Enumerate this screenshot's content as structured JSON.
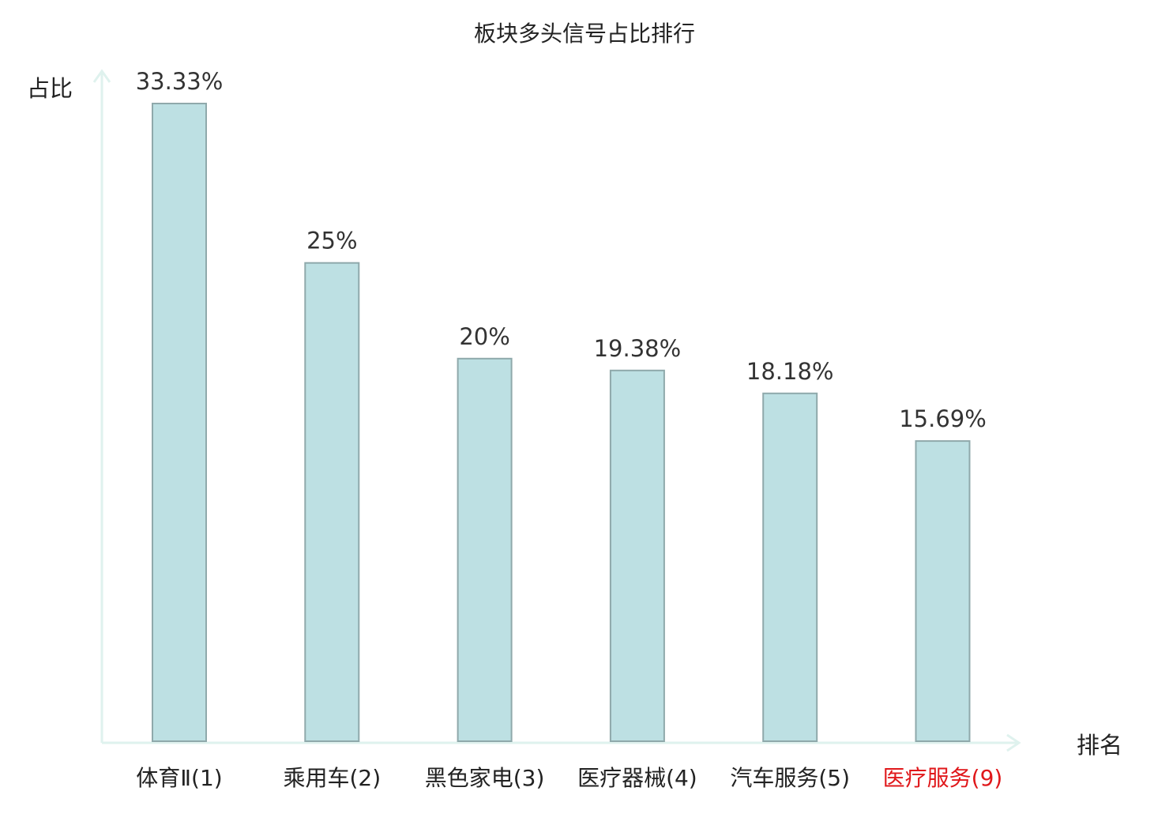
{
  "chart_data": {
    "type": "bar",
    "title": "板块多头信号占比排行",
    "xlabel": "排名",
    "ylabel": "占比",
    "categories": [
      "体育Ⅱ(1)",
      "乘用车(2)",
      "黑色家电(3)",
      "医疗器械(4)",
      "汽车服务(5)",
      "医疗服务(9)"
    ],
    "values": [
      33.33,
      25,
      20,
      19.38,
      18.18,
      15.69
    ],
    "value_labels": [
      "33.33%",
      "25%",
      "20%",
      "19.38%",
      "18.18%",
      "15.69%"
    ],
    "highlight_category": "医疗服务(9)",
    "ylim": [
      0,
      35
    ],
    "grid": false,
    "legend": "none"
  },
  "colors": {
    "bar_fill": "#bde0e3",
    "bar_stroke": "#8fa9ab",
    "axis": "#dff2ee",
    "text": "#222222",
    "value_label": "#333333",
    "highlight": "#e0181b"
  }
}
